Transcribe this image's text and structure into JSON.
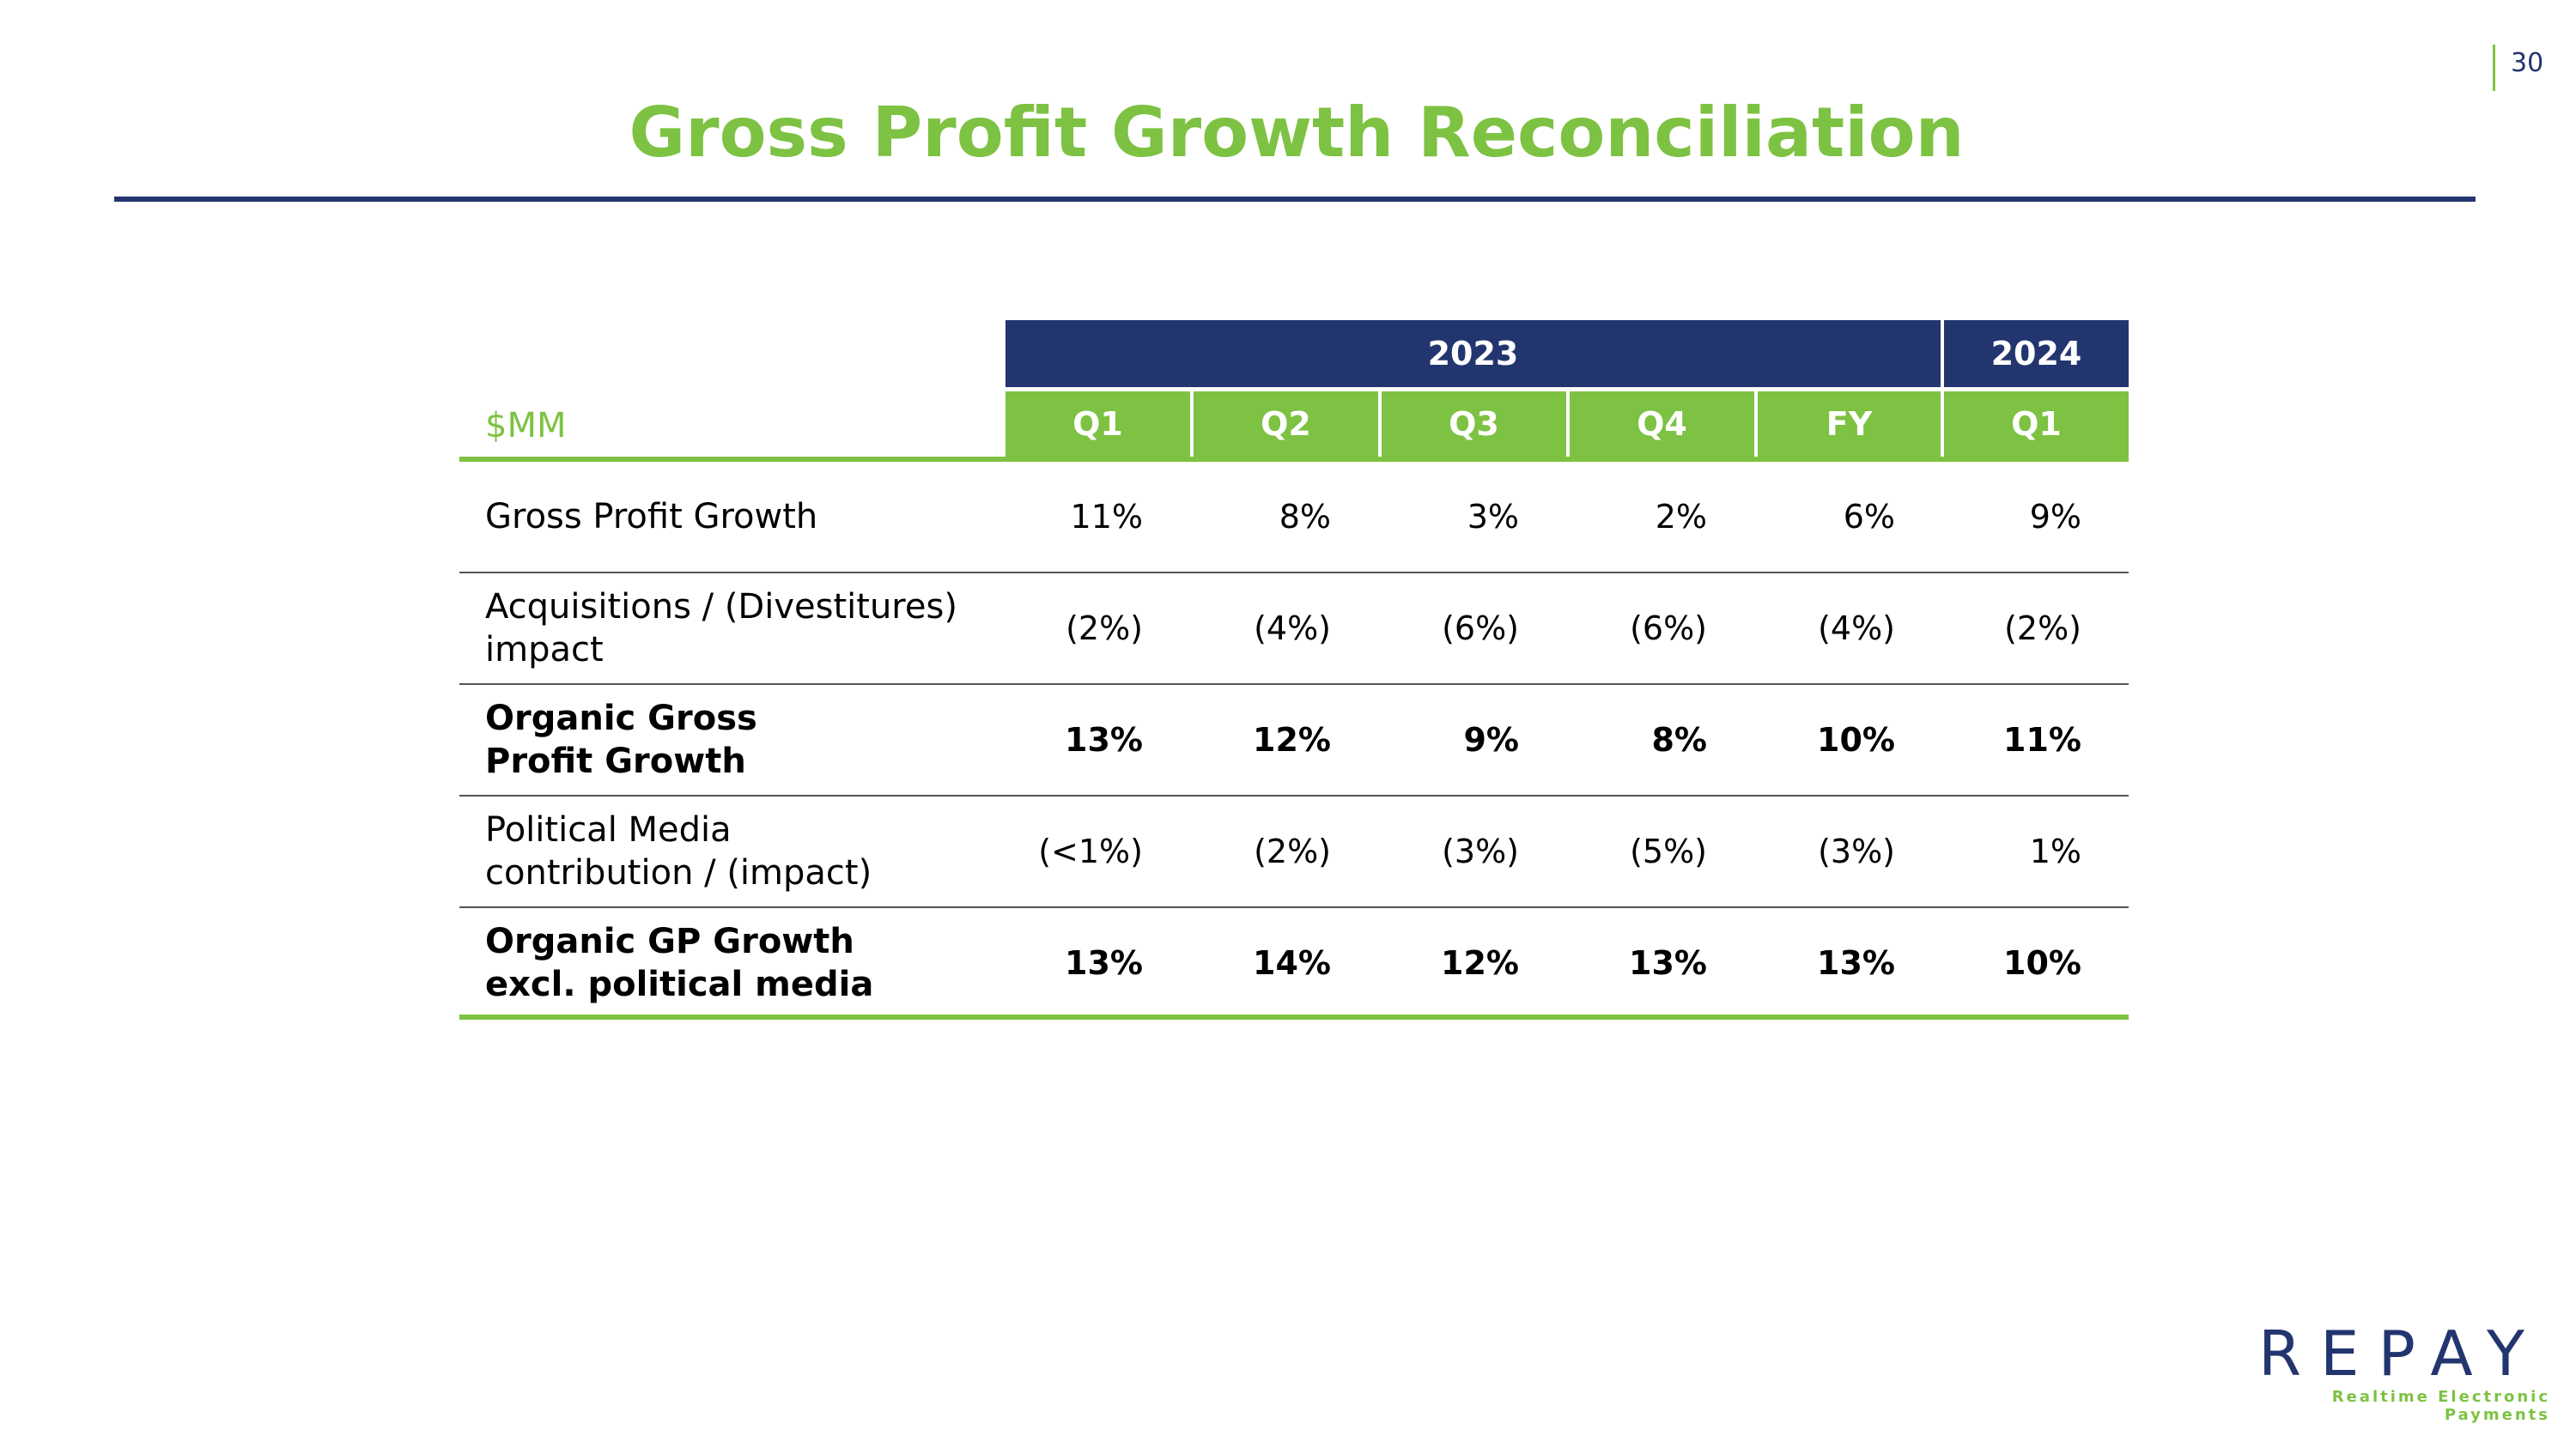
{
  "page_number": "30",
  "title": "Gross Profit Growth Reconciliation",
  "table": {
    "unit_label": "$MM",
    "year_headers": [
      "2023",
      "2024"
    ],
    "quarter_headers": [
      "Q1",
      "Q2",
      "Q3",
      "Q4",
      "FY",
      "Q1"
    ],
    "rows": [
      {
        "label_lines": [
          "Gross Profit Growth"
        ],
        "bold": false,
        "values": [
          "11%",
          "8%",
          "3%",
          "2%",
          "6%",
          "9%"
        ]
      },
      {
        "label_lines": [
          "Acquisitions / (Divestitures)",
          "impact"
        ],
        "bold": false,
        "values": [
          "(2%)",
          "(4%)",
          "(6%)",
          "(6%)",
          "(4%)",
          "(2%)"
        ]
      },
      {
        "label_lines": [
          "Organic Gross",
          "Profit Growth"
        ],
        "bold": true,
        "values": [
          "13%",
          "12%",
          "9%",
          "8%",
          "10%",
          "11%"
        ]
      },
      {
        "label_lines": [
          "Political Media",
          "contribution / (impact)"
        ],
        "bold": false,
        "values": [
          "(<1%)",
          "(2%)",
          "(3%)",
          "(5%)",
          "(3%)",
          "1%"
        ]
      },
      {
        "label_lines": [
          "Organic GP Growth",
          "excl. political media"
        ],
        "bold": true,
        "values": [
          "13%",
          "14%",
          "12%",
          "13%",
          "13%",
          "10%"
        ]
      }
    ]
  },
  "logo": {
    "wordmark": "REPAY",
    "tagline": "Realtime Electronic Payments"
  },
  "colors": {
    "brand_green": "#7dc242",
    "brand_navy": "#22356f"
  }
}
